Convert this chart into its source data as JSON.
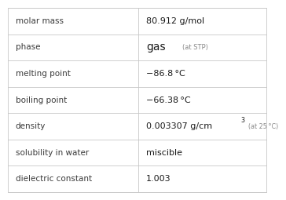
{
  "rows": [
    {
      "label": "molar mass",
      "value": "80.912 g/mol",
      "value_note": "",
      "superscript": ""
    },
    {
      "label": "phase",
      "value": "gas",
      "value_note": "(at STP)",
      "superscript": ""
    },
    {
      "label": "melting point",
      "value": "−86.8 °C",
      "value_note": "",
      "superscript": ""
    },
    {
      "label": "boiling point",
      "value": "−66.38 °C",
      "value_note": "",
      "superscript": ""
    },
    {
      "label": "density",
      "value": "0.003307 g/cm",
      "value_note": "(at 25 °C)",
      "superscript": "3"
    },
    {
      "label": "solubility in water",
      "value": "miscible",
      "value_note": "",
      "superscript": ""
    },
    {
      "label": "dielectric constant",
      "value": "1.003",
      "value_note": "",
      "superscript": ""
    }
  ],
  "col_split": 0.505,
  "bg_color": "#ffffff",
  "label_color": "#3a3a3a",
  "value_color": "#1a1a1a",
  "note_color": "#888888",
  "grid_color": "#c8c8c8",
  "label_fontsize": 7.5,
  "value_fontsize": 8.0,
  "note_fontsize": 5.8,
  "phase_value_fontsize": 10.0,
  "phase_note_fontsize": 6.0
}
